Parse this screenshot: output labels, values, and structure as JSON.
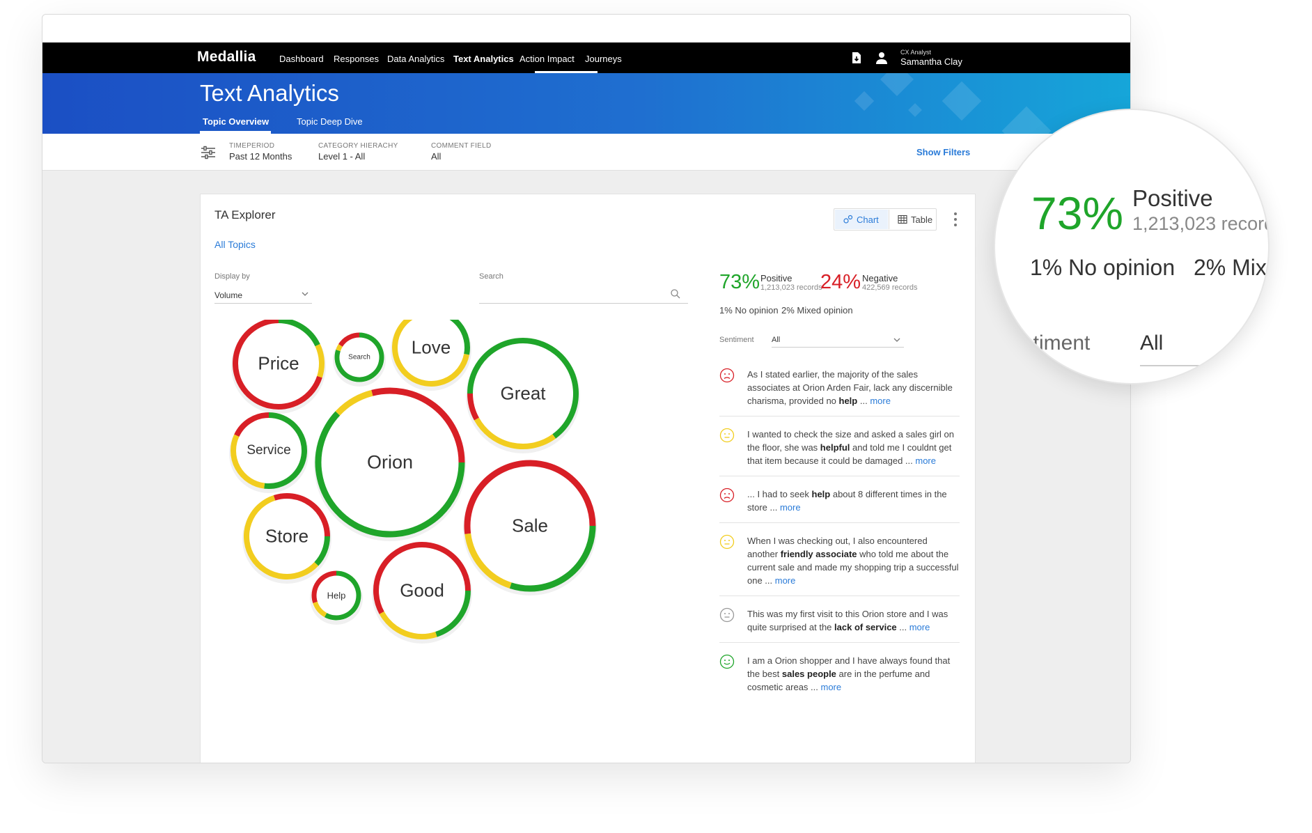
{
  "nav": {
    "logo": "Medallia",
    "links": [
      "Dashboard",
      "Responses",
      "Data Analytics",
      "Text Analytics",
      "Action Impact",
      "Journeys"
    ],
    "active": "Text Analytics",
    "user_role": "CX Analyst",
    "user_name": "Samantha Clay"
  },
  "header": {
    "title": "Text Analytics",
    "tabs": [
      "Topic Overview",
      "Topic Deep Dive"
    ],
    "active_tab": "Topic Overview"
  },
  "filters": {
    "timeperiod_label": "TIMEPERIOD",
    "timeperiod_value": "Past 12 Months",
    "category_label": "CATEGORY HIERACHY",
    "category_value": "Level 1 - All",
    "comment_label": "COMMENT FIELD",
    "comment_value": "All",
    "show_filters": "Show Filters"
  },
  "explorer": {
    "title": "TA Explorer",
    "breadcrumb": "All Topics",
    "view_chart": "Chart",
    "view_table": "Table",
    "active_view": "Chart",
    "display_by_label": "Display by",
    "display_by_value": "Volume",
    "search_label": "Search",
    "search_value": ""
  },
  "topics": [
    {
      "label": "Price",
      "size": "large",
      "positive": 0.18,
      "neutral": 0.12,
      "negative": 0.7
    },
    {
      "label": "Search",
      "size": "tiny",
      "positive": 0.8,
      "neutral": 0.04,
      "negative": 0.16
    },
    {
      "label": "Love",
      "size": "medium",
      "positive": 0.28,
      "neutral": 0.64,
      "negative": 0.08
    },
    {
      "label": "Great",
      "size": "large",
      "positive": 0.65,
      "neutral": 0.27,
      "negative": 0.08
    },
    {
      "label": "Service",
      "size": "medium",
      "positive": 0.52,
      "neutral": 0.3,
      "negative": 0.18
    },
    {
      "label": "Orion",
      "size": "huge",
      "positive": 0.62,
      "neutral": 0.09,
      "negative": 0.29
    },
    {
      "label": "Store",
      "size": "medium",
      "positive": 0.12,
      "neutral": 0.58,
      "negative": 0.3
    },
    {
      "label": "Sale",
      "size": "huge",
      "positive": 0.3,
      "neutral": 0.18,
      "negative": 0.52
    },
    {
      "label": "Help",
      "size": "tiny",
      "positive": 0.58,
      "neutral": 0.12,
      "negative": 0.3
    },
    {
      "label": "Good",
      "size": "large",
      "positive": 0.2,
      "neutral": 0.22,
      "negative": 0.58
    }
  ],
  "summary": {
    "positive_pct": "73%",
    "positive_label": "Positive",
    "positive_records": "1,213,023 records",
    "negative_pct": "24%",
    "negative_label": "Negative",
    "negative_records": "422,569 records",
    "no_opinion": "1% No opinion",
    "mixed": "2% Mixed opinion",
    "sentiment_label": "Sentiment",
    "sentiment_value": "All"
  },
  "comments": [
    {
      "sentiment": "negative",
      "parts": [
        "As I stated earlier, the majority of the sales associates at Orion Arden Fair, lack any discernible charisma, provided no ",
        "help",
        " ... "
      ],
      "more": "more"
    },
    {
      "sentiment": "neutral",
      "parts": [
        "I wanted to check the size and asked a sales girl on the floor, she was ",
        "helpful",
        " and told me I couldnt get that item because it could be damaged ... "
      ],
      "more": "more"
    },
    {
      "sentiment": "negative",
      "parts": [
        "... I had to seek ",
        "help",
        " about 8 different times in the store ... "
      ],
      "more": "more"
    },
    {
      "sentiment": "neutral",
      "parts": [
        "When I was checking out, I also encountered another ",
        "friendly associate",
        " who told me about the current sale and made my shopping trip a successful one ... "
      ],
      "more": "more"
    },
    {
      "sentiment": "none",
      "parts": [
        "This was my first visit to this Orion store and I was quite surprised at the ",
        "lack of service",
        " ... "
      ],
      "more": "more"
    },
    {
      "sentiment": "positive",
      "parts": [
        "I am a Orion shopper and I have always found that the best ",
        "sales people",
        " are in the perfume and cosmetic areas ... "
      ],
      "more": "more"
    }
  ],
  "magnifier": {
    "pct": "73%",
    "label": "Positive",
    "records": "1,213,023 record",
    "no_opinion": "1% No opinion",
    "mixed": "2% Mix",
    "sentiment": "ntiment",
    "all": "All"
  },
  "colors": {
    "positive": "#1fa52a",
    "neutral": "#f2cd1f",
    "negative": "#d81f26",
    "link": "#2a7bd8",
    "nav_bg": "#000000",
    "banner_start": "#1b4fc4",
    "banner_end": "#16a6d9"
  },
  "icons": [
    "filter-sliders-icon",
    "document-download-icon",
    "user-icon",
    "chart-icon",
    "table-icon",
    "kebab-menu-icon",
    "chevron-down-icon",
    "search-icon",
    "frown-face-icon",
    "neutral-face-icon",
    "smile-face-icon"
  ]
}
